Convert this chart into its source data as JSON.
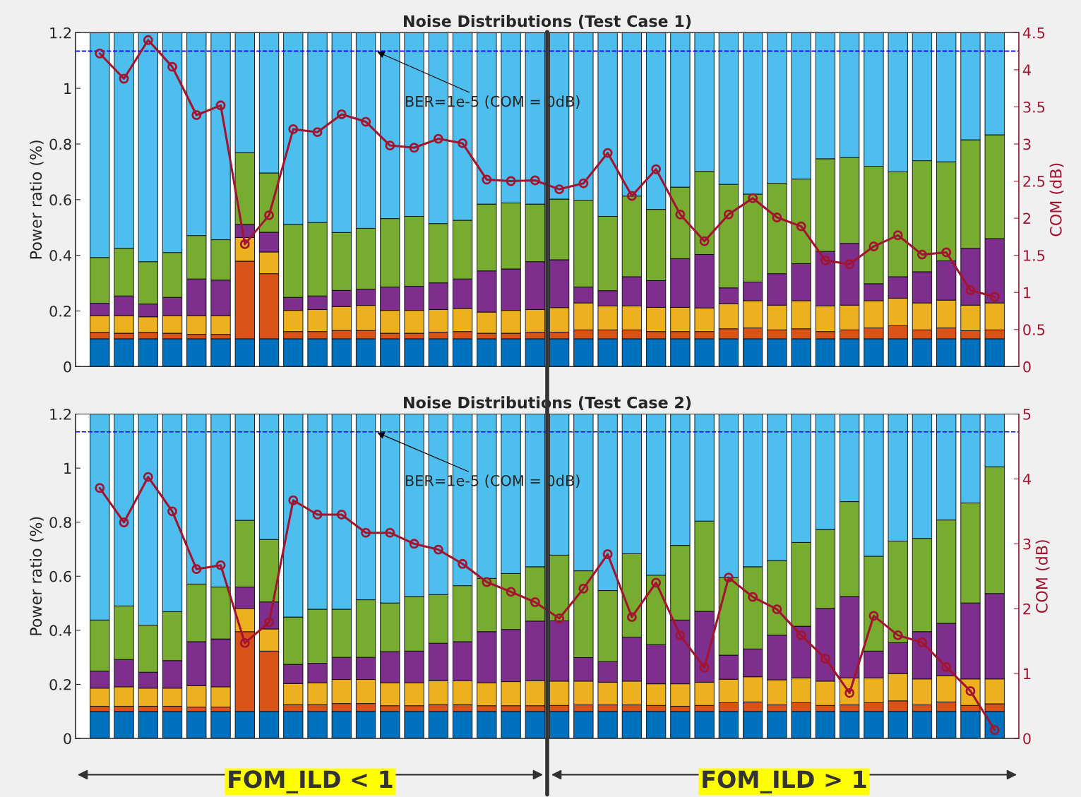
{
  "chart_data": [
    {
      "type": "bar",
      "title": "Noise Distributions (Test Case 1)",
      "ylabel": "Power ratio (%)",
      "y2label": "COM (dB)",
      "stacked": true,
      "tick_labels": "y",
      "categories": [
        null,
        null,
        null,
        null,
        null,
        null,
        null,
        null,
        null,
        null,
        null,
        null,
        null,
        null,
        null,
        null,
        null,
        null,
        null,
        null,
        null,
        null,
        null,
        null,
        null,
        null,
        null,
        null,
        null,
        null,
        null,
        null,
        null,
        null,
        null,
        null,
        null,
        null
      ],
      "ylim": [
        0,
        1.2
      ],
      "yticks": [
        0,
        0.2,
        0.4,
        0.6,
        0.8,
        1,
        1.2
      ],
      "y2lim": [
        0,
        4.5
      ],
      "y2ticks": [
        0,
        0.5,
        1,
        1.5,
        2,
        2.5,
        3,
        3.5,
        4,
        4.5
      ],
      "ref_lines": [
        {
          "axis": "y",
          "value": 1.134,
          "label": "BER=1e-5 (COM = 0dB)",
          "color": "#0000ff",
          "line_style": "dashed"
        }
      ],
      "series": [
        {
          "color": "#0072bd",
          "values": [
            0.1,
            0.1,
            0.1,
            0.1,
            0.1,
            0.1,
            0.1,
            0.1,
            0.1,
            0.1,
            0.1,
            0.1,
            0.1,
            0.1,
            0.1,
            0.1,
            0.1,
            0.1,
            0.1,
            0.1,
            0.1,
            0.1,
            0.1,
            0.1,
            0.1,
            0.1,
            0.1,
            0.1,
            0.1,
            0.1,
            0.1,
            0.1,
            0.1,
            0.1,
            0.1,
            0.1,
            0.1,
            0.1
          ]
        },
        {
          "color": "#d95319",
          "values": [
            0.023,
            0.02,
            0.023,
            0.02,
            0.016,
            0.016,
            0.279,
            0.234,
            0.026,
            0.026,
            0.03,
            0.03,
            0.02,
            0.02,
            0.024,
            0.026,
            0.02,
            0.02,
            0.024,
            0.024,
            0.032,
            0.032,
            0.032,
            0.026,
            0.026,
            0.026,
            0.036,
            0.039,
            0.032,
            0.036,
            0.026,
            0.032,
            0.039,
            0.047,
            0.032,
            0.039,
            0.029,
            0.032
          ]
        },
        {
          "color": "#edb120",
          "values": [
            0.06,
            0.063,
            0.056,
            0.063,
            0.067,
            0.067,
            0.085,
            0.078,
            0.076,
            0.079,
            0.086,
            0.09,
            0.082,
            0.082,
            0.081,
            0.083,
            0.076,
            0.082,
            0.081,
            0.088,
            0.097,
            0.086,
            0.086,
            0.087,
            0.087,
            0.085,
            0.09,
            0.098,
            0.089,
            0.101,
            0.092,
            0.089,
            0.098,
            0.099,
            0.097,
            0.1,
            0.092,
            0.097
          ]
        },
        {
          "color": "#7e2f8e",
          "values": [
            0.045,
            0.071,
            0.046,
            0.066,
            0.132,
            0.128,
            0.047,
            0.071,
            0.047,
            0.049,
            0.058,
            0.058,
            0.084,
            0.087,
            0.096,
            0.106,
            0.148,
            0.149,
            0.172,
            0.172,
            0.057,
            0.055,
            0.105,
            0.096,
            0.175,
            0.192,
            0.057,
            0.067,
            0.113,
            0.133,
            0.196,
            0.222,
            0.061,
            0.077,
            0.112,
            0.141,
            0.204,
            0.231
          ]
        },
        {
          "color": "#77ac30",
          "values": [
            0.164,
            0.171,
            0.152,
            0.161,
            0.156,
            0.145,
            0.258,
            0.213,
            0.262,
            0.264,
            0.208,
            0.219,
            0.246,
            0.251,
            0.213,
            0.211,
            0.24,
            0.237,
            0.207,
            0.218,
            0.312,
            0.267,
            0.29,
            0.256,
            0.257,
            0.299,
            0.372,
            0.316,
            0.325,
            0.304,
            0.333,
            0.308,
            0.422,
            0.377,
            0.399,
            0.356,
            0.39,
            0.373
          ]
        },
        {
          "color": "#4dbeee",
          "values": [
            0.808,
            0.775,
            0.823,
            0.79,
            0.729,
            0.744,
            0.431,
            0.504,
            0.689,
            0.682,
            0.718,
            0.703,
            0.668,
            0.66,
            0.686,
            0.674,
            0.616,
            0.612,
            0.616,
            0.598,
            0.602,
            0.66,
            0.587,
            0.635,
            0.555,
            0.498,
            0.545,
            0.58,
            0.541,
            0.526,
            0.453,
            0.449,
            0.48,
            0.5,
            0.46,
            0.464,
            0.385,
            0.367
          ]
        },
        {
          "type": "line",
          "axis": "y2",
          "color": "#a2142f",
          "marker": "circle",
          "line_style": "solid",
          "values": [
            4.22,
            3.88,
            4.4,
            4.04,
            3.39,
            3.52,
            1.65,
            2.04,
            3.2,
            3.16,
            3.4,
            3.3,
            2.98,
            2.95,
            3.07,
            3.01,
            2.52,
            2.5,
            2.51,
            2.39,
            2.47,
            2.88,
            2.3,
            2.66,
            2.05,
            1.69,
            2.05,
            2.27,
            2.01,
            1.89,
            1.43,
            1.38,
            1.62,
            1.77,
            1.51,
            1.54,
            1.03,
            0.94
          ]
        }
      ]
    },
    {
      "type": "bar",
      "title": "Noise Distributions (Test Case 2)",
      "ylabel": "Power ratio (%)",
      "y2label": "COM (dB)",
      "stacked": true,
      "tick_labels": "y",
      "categories": [
        null,
        null,
        null,
        null,
        null,
        null,
        null,
        null,
        null,
        null,
        null,
        null,
        null,
        null,
        null,
        null,
        null,
        null,
        null,
        null,
        null,
        null,
        null,
        null,
        null,
        null,
        null,
        null,
        null,
        null,
        null,
        null,
        null,
        null,
        null,
        null,
        null,
        null
      ],
      "ylim": [
        0,
        1.2
      ],
      "yticks": [
        0,
        0.2,
        0.4,
        0.6,
        0.8,
        1,
        1.2
      ],
      "y2lim": [
        0,
        5
      ],
      "y2ticks": [
        0,
        1,
        2,
        3,
        4,
        5
      ],
      "ref_lines": [
        {
          "axis": "y",
          "value": 1.134,
          "label": "BER=1e-5 (COM = 0dB)",
          "color": "#0000ff",
          "line_style": "dashed"
        }
      ],
      "annotations": [
        "FOM_ILD < 1",
        "FOM_ILD > 1"
      ],
      "series": [
        {
          "color": "#0072bd",
          "values": [
            0.1,
            0.1,
            0.1,
            0.1,
            0.1,
            0.1,
            0.1,
            0.1,
            0.1,
            0.1,
            0.1,
            0.1,
            0.1,
            0.1,
            0.1,
            0.1,
            0.1,
            0.1,
            0.1,
            0.1,
            0.1,
            0.1,
            0.1,
            0.1,
            0.1,
            0.1,
            0.1,
            0.1,
            0.1,
            0.1,
            0.1,
            0.1,
            0.1,
            0.1,
            0.1,
            0.1,
            0.1,
            0.1
          ]
        },
        {
          "color": "#d95319",
          "values": [
            0.019,
            0.019,
            0.019,
            0.019,
            0.016,
            0.016,
            0.295,
            0.223,
            0.025,
            0.025,
            0.029,
            0.029,
            0.021,
            0.021,
            0.025,
            0.025,
            0.021,
            0.021,
            0.021,
            0.022,
            0.024,
            0.024,
            0.024,
            0.022,
            0.019,
            0.022,
            0.032,
            0.035,
            0.024,
            0.032,
            0.022,
            0.024,
            0.032,
            0.039,
            0.024,
            0.035,
            0.022,
            0.028
          ]
        },
        {
          "color": "#edb120",
          "values": [
            0.067,
            0.072,
            0.067,
            0.067,
            0.079,
            0.075,
            0.086,
            0.082,
            0.078,
            0.081,
            0.089,
            0.089,
            0.085,
            0.085,
            0.088,
            0.088,
            0.085,
            0.089,
            0.092,
            0.09,
            0.088,
            0.084,
            0.088,
            0.08,
            0.083,
            0.086,
            0.087,
            0.093,
            0.093,
            0.092,
            0.09,
            0.1,
            0.092,
            0.101,
            0.096,
            0.097,
            0.098,
            0.092
          ]
        },
        {
          "color": "#7e2f8e",
          "values": [
            0.063,
            0.101,
            0.059,
            0.102,
            0.163,
            0.177,
            0.079,
            0.1,
            0.071,
            0.072,
            0.082,
            0.082,
            0.115,
            0.117,
            0.139,
            0.145,
            0.189,
            0.193,
            0.221,
            0.223,
            0.087,
            0.076,
            0.163,
            0.145,
            0.236,
            0.262,
            0.089,
            0.103,
            0.165,
            0.191,
            0.269,
            0.301,
            0.099,
            0.114,
            0.175,
            0.194,
            0.281,
            0.316
          ]
        },
        {
          "color": "#77ac30",
          "values": [
            0.189,
            0.198,
            0.174,
            0.181,
            0.213,
            0.192,
            0.247,
            0.231,
            0.175,
            0.2,
            0.178,
            0.213,
            0.18,
            0.202,
            0.18,
            0.207,
            0.197,
            0.207,
            0.201,
            0.243,
            0.321,
            0.263,
            0.308,
            0.257,
            0.276,
            0.334,
            0.287,
            0.304,
            0.276,
            0.31,
            0.292,
            0.351,
            0.351,
            0.376,
            0.345,
            0.382,
            0.37,
            0.469
          ]
        },
        {
          "color": "#4dbeee",
          "values": [
            0.762,
            0.71,
            0.781,
            0.731,
            0.629,
            0.64,
            0.393,
            0.464,
            0.751,
            0.722,
            0.722,
            0.687,
            0.699,
            0.675,
            0.668,
            0.635,
            0.608,
            0.59,
            0.565,
            0.522,
            0.58,
            0.653,
            0.517,
            0.596,
            0.486,
            0.396,
            0.605,
            0.565,
            0.542,
            0.475,
            0.427,
            0.324,
            0.526,
            0.47,
            0.46,
            0.392,
            0.329,
            0.195
          ]
        },
        {
          "type": "line",
          "axis": "y2",
          "color": "#a2142f",
          "marker": "circle",
          "line_style": "solid",
          "values": [
            3.86,
            3.33,
            4.03,
            3.5,
            2.61,
            2.67,
            1.47,
            1.79,
            3.67,
            3.45,
            3.45,
            3.17,
            3.17,
            3.0,
            2.91,
            2.69,
            2.41,
            2.26,
            2.1,
            1.85,
            2.31,
            2.84,
            1.87,
            2.4,
            1.59,
            1.09,
            2.48,
            2.18,
            1.99,
            1.59,
            1.23,
            0.7,
            1.89,
            1.59,
            1.48,
            1.1,
            0.73,
            0.13
          ]
        }
      ]
    }
  ]
}
